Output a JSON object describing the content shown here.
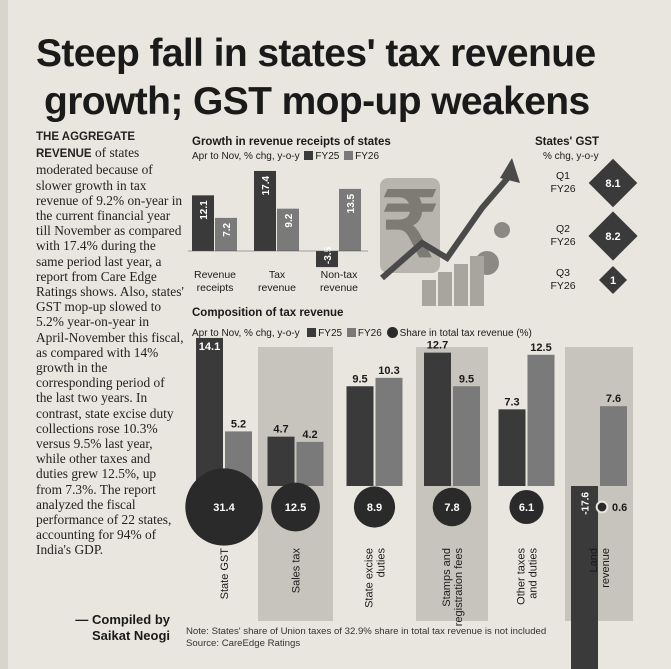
{
  "headline": {
    "line1": "Steep fall in states' tax revenue",
    "line2": "growth; GST mop-up weakens"
  },
  "sidebar": {
    "lead": "THE AGGREGATE REVENUE",
    "body": "of states moderated because of slower growth in tax revenue of 9.2% on-year in the current financial year till November as compared with 17.4% during the same period last year, a report from Care Edge Ratings shows. Also, states' GST mop-up slowed to 5.2% year-on-year in April-November this fiscal, as compared with 14% growth in the corresponding period of the last two years. In contrast, state excise duty collections rose 10.3% versus 9.5% last year, while other taxes and duties grew 12.5%, up from 7.3%. The report analyzed the fiscal performance of 22 states, accounting for 94% of India's GDP.",
    "credit1": "— Compiled by",
    "credit2": "Saikat Neogi"
  },
  "legend": {
    "fy25": "FY25",
    "fy26": "FY26",
    "share": "Share in total tax revenue (%)"
  },
  "chart_data": [
    {
      "type": "bar",
      "title": "Growth in revenue receipts of states",
      "subtitle": "Apr to Nov, % chg, y-o-y",
      "categories": [
        "Revenue receipts",
        "Tax revenue",
        "Non-tax revenue"
      ],
      "series": [
        {
          "name": "FY25",
          "values": [
            12.1,
            17.4,
            -3.5
          ]
        },
        {
          "name": "FY26",
          "values": [
            7.2,
            9.2,
            13.5
          ]
        }
      ]
    },
    {
      "type": "table",
      "title": "States' GST",
      "subtitle": "% chg, y-o-y",
      "rows": [
        {
          "label": "Q1 FY26",
          "value": 8.1
        },
        {
          "label": "Q2 FY26",
          "value": 8.2
        },
        {
          "label": "Q3 FY26",
          "value": 1
        }
      ]
    },
    {
      "type": "bar",
      "title": "Composition of tax revenue",
      "subtitle": "Apr to Nov, % chg, y-o-y",
      "categories": [
        "State GST",
        "Sales tax",
        "State excise duties",
        "Stamps and registration fees",
        "Other taxes and duties",
        "Land revenue"
      ],
      "series": [
        {
          "name": "FY25",
          "values": [
            14.1,
            4.7,
            9.5,
            12.7,
            7.3,
            -17.6
          ]
        },
        {
          "name": "FY26",
          "values": [
            5.2,
            4.2,
            10.3,
            9.5,
            12.5,
            7.6
          ]
        },
        {
          "name": "Share in total tax revenue (%)",
          "values": [
            31.4,
            12.5,
            8.9,
            7.8,
            6.1,
            0.6
          ]
        }
      ]
    }
  ],
  "note": "Note: States' share of Union taxes of 32.9% share in total tax revenue is not included",
  "source": "Source: CareEdge Ratings",
  "colors": {
    "fy25": "#3a3a3a",
    "fy26": "#7a7a7a",
    "panel": "#c7c4bd",
    "dot": "#2a2a2a",
    "paper": "#e9e6df"
  }
}
